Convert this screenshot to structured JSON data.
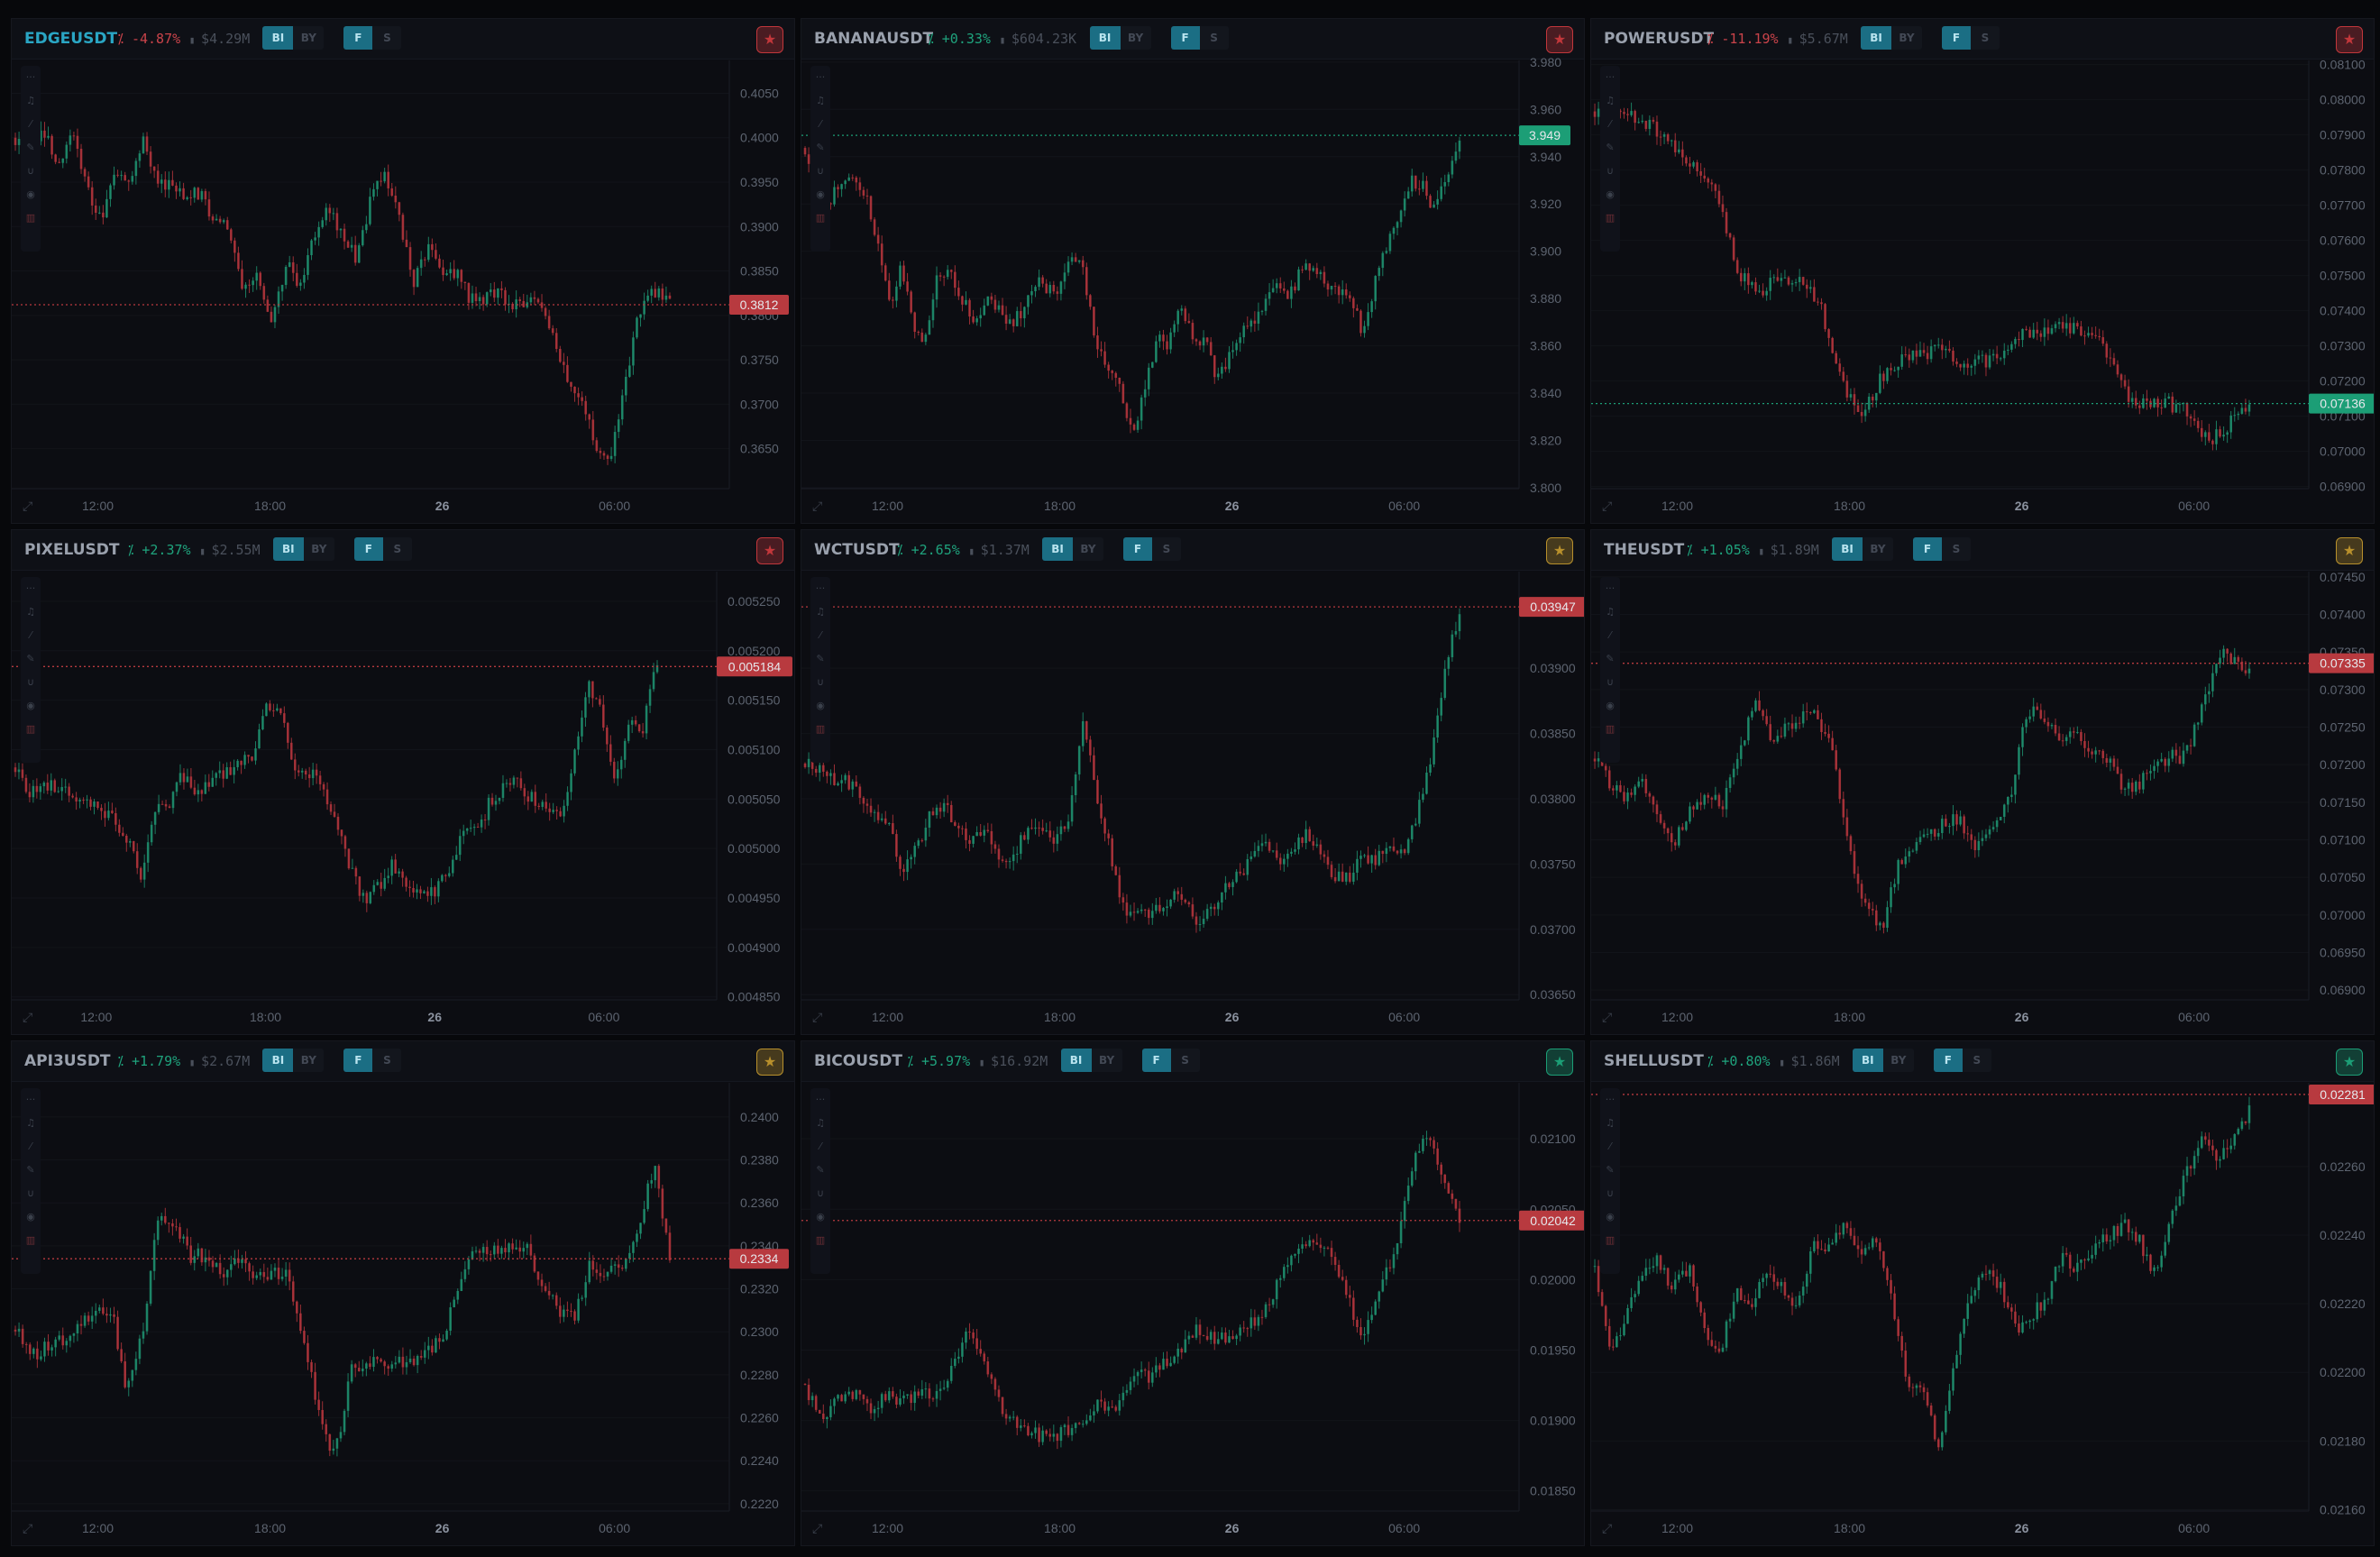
{
  "panels": [
    {
      "symbol": "EDGEUSDT",
      "active": true,
      "change": "-4.87%",
      "change_dir": "down",
      "volume": "$4.29M",
      "star_color": "#c2373b",
      "chart_data": {
        "type": "candlestick",
        "ylim": [
          0.3605,
          0.4087
        ],
        "yticks": [
          "0.3650",
          "0.3700",
          "0.3750",
          "0.3800",
          "0.3850",
          "0.3900",
          "0.3950",
          "0.4000",
          "0.4050"
        ],
        "xticks": [
          "12:00",
          "18:00",
          "26",
          "06:00"
        ],
        "last_price": "0.3812",
        "last_price_color": "#b83a3f",
        "path": [
          0.4,
          0.3985,
          0.4008,
          0.3966,
          0.4005,
          0.3947,
          0.3908,
          0.3964,
          0.3954,
          0.3999,
          0.3944,
          0.3946,
          0.3934,
          0.3939,
          0.3906,
          0.3904,
          0.3823,
          0.3852,
          0.3788,
          0.3858,
          0.3837,
          0.3892,
          0.3922,
          0.3893,
          0.3862,
          0.3935,
          0.3964,
          0.3904,
          0.3838,
          0.3874,
          0.3848,
          0.3846,
          0.3817,
          0.3818,
          0.3825,
          0.3813,
          0.3813,
          0.3809,
          0.3762,
          0.3726,
          0.3692,
          0.3642,
          0.3649,
          0.3739,
          0.3813,
          0.3826,
          0.3813
        ]
      }
    },
    {
      "symbol": "BANANAUSDT",
      "active": false,
      "change": "+0.33%",
      "change_dir": "up",
      "volume": "$604.23K",
      "star_color": "#c2373b",
      "chart_data": {
        "type": "candlestick",
        "ylim": [
          3.7996,
          3.9807
        ],
        "yticks": [
          "3.800",
          "3.820",
          "3.840",
          "3.860",
          "3.880",
          "3.900",
          "3.920",
          "3.940",
          "3.960",
          "3.980"
        ],
        "xticks": [
          "12:00",
          "18:00",
          "26",
          "06:00"
        ],
        "last_price": "3.949",
        "last_price_color": "#1c9e76",
        "path": [
          3.9437,
          3.917,
          3.9197,
          3.9306,
          3.9315,
          3.9234,
          3.9035,
          3.8761,
          3.8939,
          3.8637,
          3.8621,
          3.8924,
          3.8918,
          3.8794,
          3.8714,
          3.88,
          3.8764,
          3.8696,
          3.8758,
          3.8881,
          3.8824,
          3.8839,
          3.899,
          3.8906,
          3.8623,
          3.8516,
          3.8419,
          3.8231,
          3.84,
          3.8634,
          3.8611,
          3.8774,
          3.8617,
          3.8642,
          3.846,
          3.8543,
          3.8646,
          3.8688,
          3.8791,
          3.8852,
          3.8807,
          3.8932,
          3.893,
          3.8864,
          3.8823,
          3.8818,
          3.8637,
          3.8873,
          3.9035,
          3.9128,
          3.93,
          3.9273,
          3.9164,
          3.9328,
          3.9461
        ]
      }
    },
    {
      "symbol": "POWERUSDT",
      "active": false,
      "change": "-11.19%",
      "change_dir": "down",
      "volume": "$5.67M",
      "star_color": "#c2373b",
      "chart_data": {
        "type": "candlestick",
        "ylim": [
          0.06894,
          0.08112
        ],
        "yticks": [
          "0.06900",
          "0.07000",
          "0.07100",
          "0.07200",
          "0.07300",
          "0.07400",
          "0.07500",
          "0.07600",
          "0.07700",
          "0.07800",
          "0.07900",
          "0.08000",
          "0.08100"
        ],
        "xticks": [
          "12:00",
          "18:00",
          "26",
          "06:00"
        ],
        "last_price": "0.07136",
        "last_price_color": "#1c9e76",
        "path": [
          0.07967,
          0.0795,
          0.07947,
          0.07917,
          0.07853,
          0.07795,
          0.07739,
          0.07509,
          0.07454,
          0.07494,
          0.07485,
          0.07416,
          0.07211,
          0.07096,
          0.07208,
          0.07267,
          0.07281,
          0.07286,
          0.0724,
          0.07258,
          0.07275,
          0.07336,
          0.07337,
          0.0736,
          0.07344,
          0.0729,
          0.07157,
          0.07125,
          0.07138,
          0.07111,
          0.07033,
          0.07074,
          0.07139
        ]
      }
    },
    {
      "symbol": "PIXELUSDT",
      "active": false,
      "change": "+2.37%",
      "change_dir": "up",
      "volume": "$2.55M",
      "star_color": "#c2373b",
      "chart_data": {
        "type": "candlestick",
        "ylim": [
          0.004847,
          0.00528
        ],
        "yticks": [
          "0.004850",
          "0.004900",
          "0.004950",
          "0.005000",
          "0.005050",
          "0.005100",
          "0.005150",
          "0.005200",
          "0.005250"
        ],
        "xticks": [
          "12:00",
          "18:00",
          "26",
          "06:00"
        ],
        "last_price": "0.005184",
        "last_price_color": "#b83a3f",
        "path": [
          0.005082,
          0.005056,
          0.005066,
          0.005063,
          0.005052,
          0.005052,
          0.005035,
          0.005033,
          0.005011,
          0.004969,
          0.005043,
          0.005042,
          0.005075,
          0.00506,
          0.005067,
          0.005074,
          0.005087,
          0.005089,
          0.005143,
          0.005138,
          0.005083,
          0.005078,
          0.005061,
          0.005023,
          0.004978,
          0.004946,
          0.004962,
          0.004983,
          0.004968,
          0.004957,
          0.004955,
          0.004976,
          0.00501,
          0.005017,
          0.005046,
          0.005062,
          0.005067,
          0.005051,
          0.005048,
          0.005028,
          0.005086,
          0.005167,
          0.005135,
          0.005067,
          0.005133,
          0.005123,
          0.005191
        ]
      }
    },
    {
      "symbol": "WCTUSDT",
      "active": false,
      "change": "+2.65%",
      "change_dir": "up",
      "volume": "$1.37M",
      "star_color": "#b8902c",
      "chart_data": {
        "type": "candlestick",
        "ylim": [
          0.03646,
          0.03974
        ],
        "yticks": [
          "0.03650",
          "0.03700",
          "0.03750",
          "0.03800",
          "0.03850",
          "0.03900"
        ],
        "xticks": [
          "12:00",
          "18:00",
          "26",
          "06:00"
        ],
        "last_price": "0.03947",
        "last_price_color": "#b83a3f",
        "path": [
          0.03827,
          0.03825,
          0.03812,
          0.03813,
          0.03805,
          0.03786,
          0.03779,
          0.03743,
          0.03762,
          0.03787,
          0.03796,
          0.03775,
          0.03766,
          0.03776,
          0.03755,
          0.03758,
          0.03779,
          0.03778,
          0.03769,
          0.03786,
          0.03861,
          0.03802,
          0.03756,
          0.03709,
          0.0371,
          0.03716,
          0.03723,
          0.03725,
          0.03707,
          0.03711,
          0.03731,
          0.03739,
          0.03751,
          0.03772,
          0.03754,
          0.03762,
          0.03775,
          0.03762,
          0.03741,
          0.03739,
          0.03756,
          0.03754,
          0.03758,
          0.03761,
          0.03791,
          0.03833,
          0.03905,
          0.03937
        ]
      }
    },
    {
      "symbol": "THEUSDT",
      "active": false,
      "change": "+1.05%",
      "change_dir": "up",
      "volume": "$1.89M",
      "star_color": "#b8902c",
      "chart_data": {
        "type": "candlestick",
        "ylim": [
          0.06887,
          0.07457
        ],
        "yticks": [
          "0.06900",
          "0.06950",
          "0.07000",
          "0.07050",
          "0.07100",
          "0.07150",
          "0.07200",
          "0.07250",
          "0.07300",
          "0.07350",
          "0.07400",
          "0.07450"
        ],
        "xticks": [
          "12:00",
          "18:00",
          "26",
          "06:00"
        ],
        "last_price": "0.07335",
        "last_price_color": "#b83a3f",
        "path": [
          0.07208,
          0.07175,
          0.07155,
          0.07173,
          0.07129,
          0.07098,
          0.07143,
          0.07161,
          0.07143,
          0.07209,
          0.07282,
          0.07237,
          0.07248,
          0.07263,
          0.07264,
          0.07206,
          0.07081,
          0.07011,
          0.06978,
          0.07068,
          0.07089,
          0.07105,
          0.07128,
          0.07121,
          0.0709,
          0.07114,
          0.07152,
          0.07269,
          0.07268,
          0.0724,
          0.07244,
          0.07219,
          0.07211,
          0.07172,
          0.07174,
          0.07189,
          0.0721,
          0.0721,
          0.07272,
          0.07346,
          0.07342,
          0.07325
        ]
      }
    },
    {
      "symbol": "API3USDT",
      "active": false,
      "change": "+1.79%",
      "change_dir": "up",
      "volume": "$2.67M",
      "star_color": "#b8902c",
      "chart_data": {
        "type": "candlestick",
        "ylim": [
          0.22166,
          0.24159
        ],
        "yticks": [
          "0.2220",
          "0.2240",
          "0.2260",
          "0.2280",
          "0.2300",
          "0.2320",
          "0.2340",
          "0.2360",
          "0.2380",
          "0.2400"
        ],
        "xticks": [
          "12:00",
          "18:00",
          "26",
          "06:00"
        ],
        "last_price": "0.2334",
        "last_price_color": "#b83a3f",
        "path": [
          0.2301,
          0.2289,
          0.2293,
          0.2297,
          0.2303,
          0.2308,
          0.2311,
          0.2271,
          0.2301,
          0.2356,
          0.2351,
          0.2335,
          0.2336,
          0.2326,
          0.2334,
          0.2325,
          0.2326,
          0.2328,
          0.2299,
          0.2263,
          0.2241,
          0.2282,
          0.2286,
          0.2286,
          0.2286,
          0.2288,
          0.2292,
          0.2302,
          0.2326,
          0.2339,
          0.2339,
          0.2338,
          0.2339,
          0.2322,
          0.2311,
          0.2306,
          0.2331,
          0.2327,
          0.2332,
          0.2346,
          0.2378,
          0.2334
        ]
      }
    },
    {
      "symbol": "BICOUSDT",
      "active": false,
      "change": "+5.97%",
      "change_dir": "up",
      "volume": "$16.92M",
      "star_color": "#1c9e76",
      "chart_data": {
        "type": "candlestick",
        "ylim": [
          0.018357,
          0.021398
        ],
        "yticks": [
          "0.01850",
          "0.01900",
          "0.01950",
          "0.02000",
          "0.02050",
          "0.02100"
        ],
        "xticks": [
          "12:00",
          "18:00",
          "26",
          "06:00"
        ],
        "last_price": "0.02042",
        "last_price_color": "#b83a3f",
        "path": [
          0.01926,
          0.01898,
          0.01917,
          0.01919,
          0.01906,
          0.01917,
          0.01915,
          0.01917,
          0.01919,
          0.01936,
          0.01964,
          0.01936,
          0.01909,
          0.01896,
          0.01891,
          0.01887,
          0.01894,
          0.01898,
          0.01912,
          0.01908,
          0.01935,
          0.0193,
          0.01943,
          0.0195,
          0.01965,
          0.01956,
          0.01959,
          0.01968,
          0.01976,
          0.01999,
          0.02021,
          0.02024,
          0.02021,
          0.01994,
          0.01954,
          0.0199,
          0.02018,
          0.02076,
          0.02106,
          0.02075,
          0.02044
        ]
      }
    },
    {
      "symbol": "SHELLUSDT",
      "active": false,
      "change": "+0.80%",
      "change_dir": "up",
      "volume": "$1.86M",
      "star_color": "#1c9e76",
      "chart_data": {
        "type": "candlestick",
        "ylim": [
          0.021596,
          0.022844
        ],
        "yticks": [
          "0.02160",
          "0.02180",
          "0.02200",
          "0.02220",
          "0.02240",
          "0.02260"
        ],
        "xticks": [
          "12:00",
          "18:00",
          "26",
          "06:00"
        ],
        "last_price": "0.02281",
        "last_price_color": "#b83a3f",
        "path": [
          0.02231,
          0.02207,
          0.02215,
          0.02229,
          0.02232,
          0.02224,
          0.02231,
          0.02213,
          0.02205,
          0.02223,
          0.02219,
          0.02229,
          0.02225,
          0.02219,
          0.02238,
          0.02237,
          0.02242,
          0.02233,
          0.02239,
          0.02223,
          0.02198,
          0.02197,
          0.02178,
          0.02201,
          0.02222,
          0.02229,
          0.02226,
          0.02213,
          0.02216,
          0.02222,
          0.02234,
          0.0223,
          0.02237,
          0.02239,
          0.02244,
          0.02238,
          0.02228,
          0.02244,
          0.02259,
          0.02269,
          0.02261,
          0.02269,
          0.02276
        ]
      }
    }
  ]
}
